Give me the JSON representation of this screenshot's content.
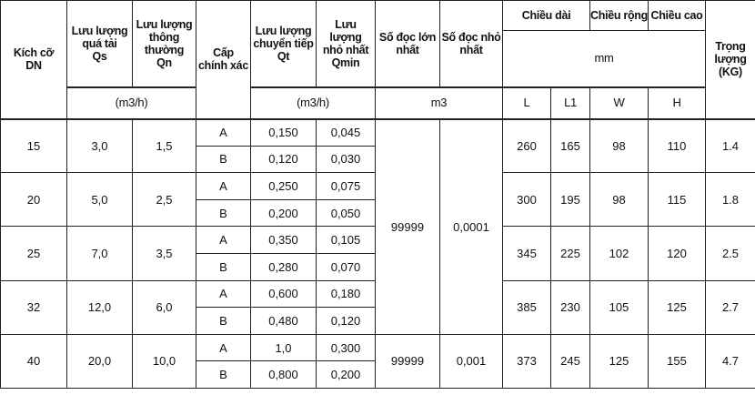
{
  "header": {
    "dn": "Kích cỡ\nDN",
    "qs": "Lưu lượng\nquá tải\nQs",
    "qn": "Lưu lượng\nthông\nthường\nQn",
    "grade": "Cấp\nchính xác",
    "qt": "Lưu lượng\nchuyển tiếp\nQt",
    "qmin": "Lưu\nlượng\nnhỏ nhất\nQmin",
    "max_reading": "Số đọc lớn\nnhất",
    "min_reading": "Số đọc nhỏ\nnhất",
    "length": "Chiều dài",
    "width": "Chiều rộng",
    "height": "Chiều cao",
    "weight": "Trọng\nlượng\n(KG)",
    "size_unit": "mm",
    "flow_unit_1": "(m3/h)",
    "flow_unit_2": "(m3/h)",
    "volume_unit": "m3",
    "L": "L",
    "L1": "L1",
    "W": "W",
    "H": "H"
  },
  "groups": [
    {
      "dn": "15",
      "qs": "3,0",
      "qn": "1,5",
      "classes": [
        {
          "grade": "A",
          "qt": "0,150",
          "qmin": "0,045"
        },
        {
          "grade": "B",
          "qt": "0,120",
          "qmin": "0,030"
        }
      ],
      "L": "260",
      "L1": "165",
      "W": "98",
      "H": "110",
      "weight": "1.4"
    },
    {
      "dn": "20",
      "qs": "5,0",
      "qn": "2,5",
      "classes": [
        {
          "grade": "A",
          "qt": "0,250",
          "qmin": "0,075"
        },
        {
          "grade": "B",
          "qt": "0,200",
          "qmin": "0,050"
        }
      ],
      "L": "300",
      "L1": "195",
      "W": "98",
      "H": "115",
      "weight": "1.8"
    },
    {
      "dn": "25",
      "qs": "7,0",
      "qn": "3,5",
      "classes": [
        {
          "grade": "A",
          "qt": "0,350",
          "qmin": "0,105"
        },
        {
          "grade": "B",
          "qt": "0,280",
          "qmin": "0,070"
        }
      ],
      "L": "345",
      "L1": "225",
      "W": "102",
      "H": "120",
      "weight": "2.5"
    },
    {
      "dn": "32",
      "qs": "12,0",
      "qn": "6,0",
      "classes": [
        {
          "grade": "A",
          "qt": "0,600",
          "qmin": "0,180"
        },
        {
          "grade": "B",
          "qt": "0,480",
          "qmin": "0,120"
        }
      ],
      "L": "385",
      "L1": "230",
      "W": "105",
      "H": "125",
      "weight": "2.7"
    },
    {
      "dn": "40",
      "qs": "20,0",
      "qn": "10,0",
      "classes": [
        {
          "grade": "A",
          "qt": "1,0",
          "qmin": "0,300"
        },
        {
          "grade": "B",
          "qt": "0,800",
          "qmin": "0,200"
        }
      ],
      "L": "373",
      "L1": "245",
      "W": "125",
      "H": "155",
      "weight": "4.7"
    }
  ],
  "readings": [
    {
      "max": "99999",
      "min": "0,0001"
    },
    {
      "max": "99999",
      "min": "0,001"
    }
  ]
}
